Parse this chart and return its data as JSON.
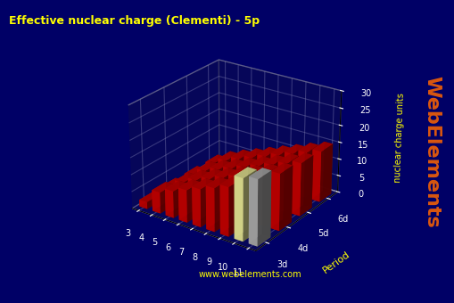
{
  "title": "Effective nuclear charge (Clementi) - 5p",
  "xlabel": "",
  "ylabel": "Period",
  "zlabel": "nuclear charge units",
  "groups": [
    3,
    4,
    5,
    6,
    7,
    8,
    9,
    10,
    11
  ],
  "periods": [
    "3d",
    "4d",
    "5d",
    "6d"
  ],
  "values_3d": [
    2.0,
    6.25,
    7.85,
    9.45,
    11.05,
    12.65,
    14.25,
    18.0,
    null
  ],
  "values_4d": [
    2.0,
    5.45,
    7.05,
    8.65,
    10.25,
    11.85,
    13.45,
    15.05,
    null
  ],
  "values_5d": [
    null,
    4.5,
    6.1,
    7.7,
    9.3,
    10.9,
    12.5,
    14.1,
    null
  ],
  "values_6d": [
    null,
    null,
    null,
    null,
    null,
    null,
    null,
    null,
    null
  ],
  "bar_colors": {
    "3d": "#dd0000",
    "4d": "#dd0000",
    "5d": "#dd0000",
    "6d": "#dd0000"
  },
  "special_colors": {
    "10_3d": "#ffffaa",
    "11_3d": "#c0c0c0"
  },
  "background_color": "#000066",
  "floor_color": "#888888",
  "title_color": "#ffff00",
  "axis_label_color": "#ffff00",
  "tick_color": "#ffffff",
  "watermark": "WebElements",
  "watermark2": "www.webelements.com",
  "ylim": [
    0,
    30
  ],
  "yticks": [
    0,
    5,
    10,
    15,
    20,
    25,
    30
  ]
}
